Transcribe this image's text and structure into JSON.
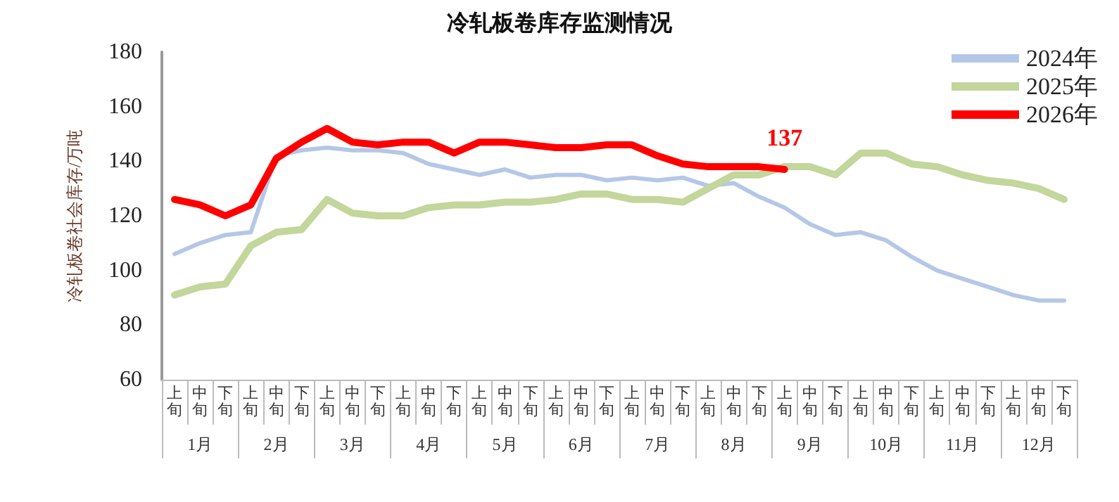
{
  "chart_data": {
    "type": "line",
    "title": "冷轧板卷库存监测情况",
    "ylabel": "冷轧板卷社会库存/万吨",
    "categories": [
      "上旬",
      "中旬",
      "下旬",
      "上旬",
      "中旬",
      "下旬",
      "上旬",
      "中旬",
      "下旬",
      "上旬",
      "中旬",
      "下旬",
      "上旬",
      "中旬",
      "下旬",
      "上旬",
      "中旬",
      "下旬",
      "上旬",
      "中旬",
      "下旬",
      "上旬",
      "中旬",
      "下旬",
      "上旬",
      "中旬",
      "下旬",
      "上旬",
      "中旬",
      "下旬",
      "上旬",
      "中旬",
      "下旬",
      "上旬",
      "中旬",
      "下旬"
    ],
    "annotations": [
      "1月",
      "2月",
      "3月",
      "4月",
      "5月",
      "6月",
      "7月",
      "8月",
      "9月",
      "10月",
      "11月",
      "12月"
    ],
    "series": [
      {
        "name": "2024年",
        "color": "#b4c7e7",
        "values": [
          106,
          110,
          113,
          114,
          142,
          144,
          145,
          144,
          144,
          143,
          139,
          137,
          135,
          137,
          134,
          135,
          135,
          133,
          134,
          133,
          134,
          131,
          132,
          127,
          123,
          117,
          113,
          114,
          111,
          105,
          100,
          97,
          94,
          91,
          89,
          89
        ]
      },
      {
        "name": "2025年",
        "color": "#c3d69b",
        "values": [
          91,
          94,
          95,
          109,
          114,
          115,
          126,
          121,
          120,
          120,
          123,
          124,
          124,
          125,
          125,
          126,
          128,
          128,
          126,
          126,
          125,
          130,
          135,
          135,
          138,
          138,
          135,
          143,
          143,
          139,
          138,
          135,
          133,
          132,
          130,
          126
        ]
      },
      {
        "name": "2026年",
        "color": "#ff0000",
        "values": [
          126,
          124,
          120,
          124,
          141,
          147,
          152,
          147,
          146,
          147,
          147,
          143,
          147,
          147,
          146,
          145,
          145,
          146,
          146,
          142,
          139,
          138,
          138,
          138,
          137,
          null,
          null,
          null,
          null,
          null,
          null,
          null,
          null,
          null,
          null,
          null
        ],
        "value_labels": [
          null,
          null,
          null,
          null,
          null,
          null,
          null,
          null,
          null,
          null,
          null,
          null,
          null,
          null,
          null,
          null,
          null,
          null,
          null,
          null,
          null,
          null,
          null,
          null,
          "137",
          null,
          null,
          null,
          null,
          null,
          null,
          null,
          null,
          null,
          null,
          null
        ]
      }
    ],
    "ylim": [
      60,
      180
    ],
    "yticks": [
      60,
      80,
      100,
      120,
      140,
      160,
      180
    ],
    "grid": false,
    "legend": "top right",
    "marker": "none",
    "line_style": "solid"
  }
}
